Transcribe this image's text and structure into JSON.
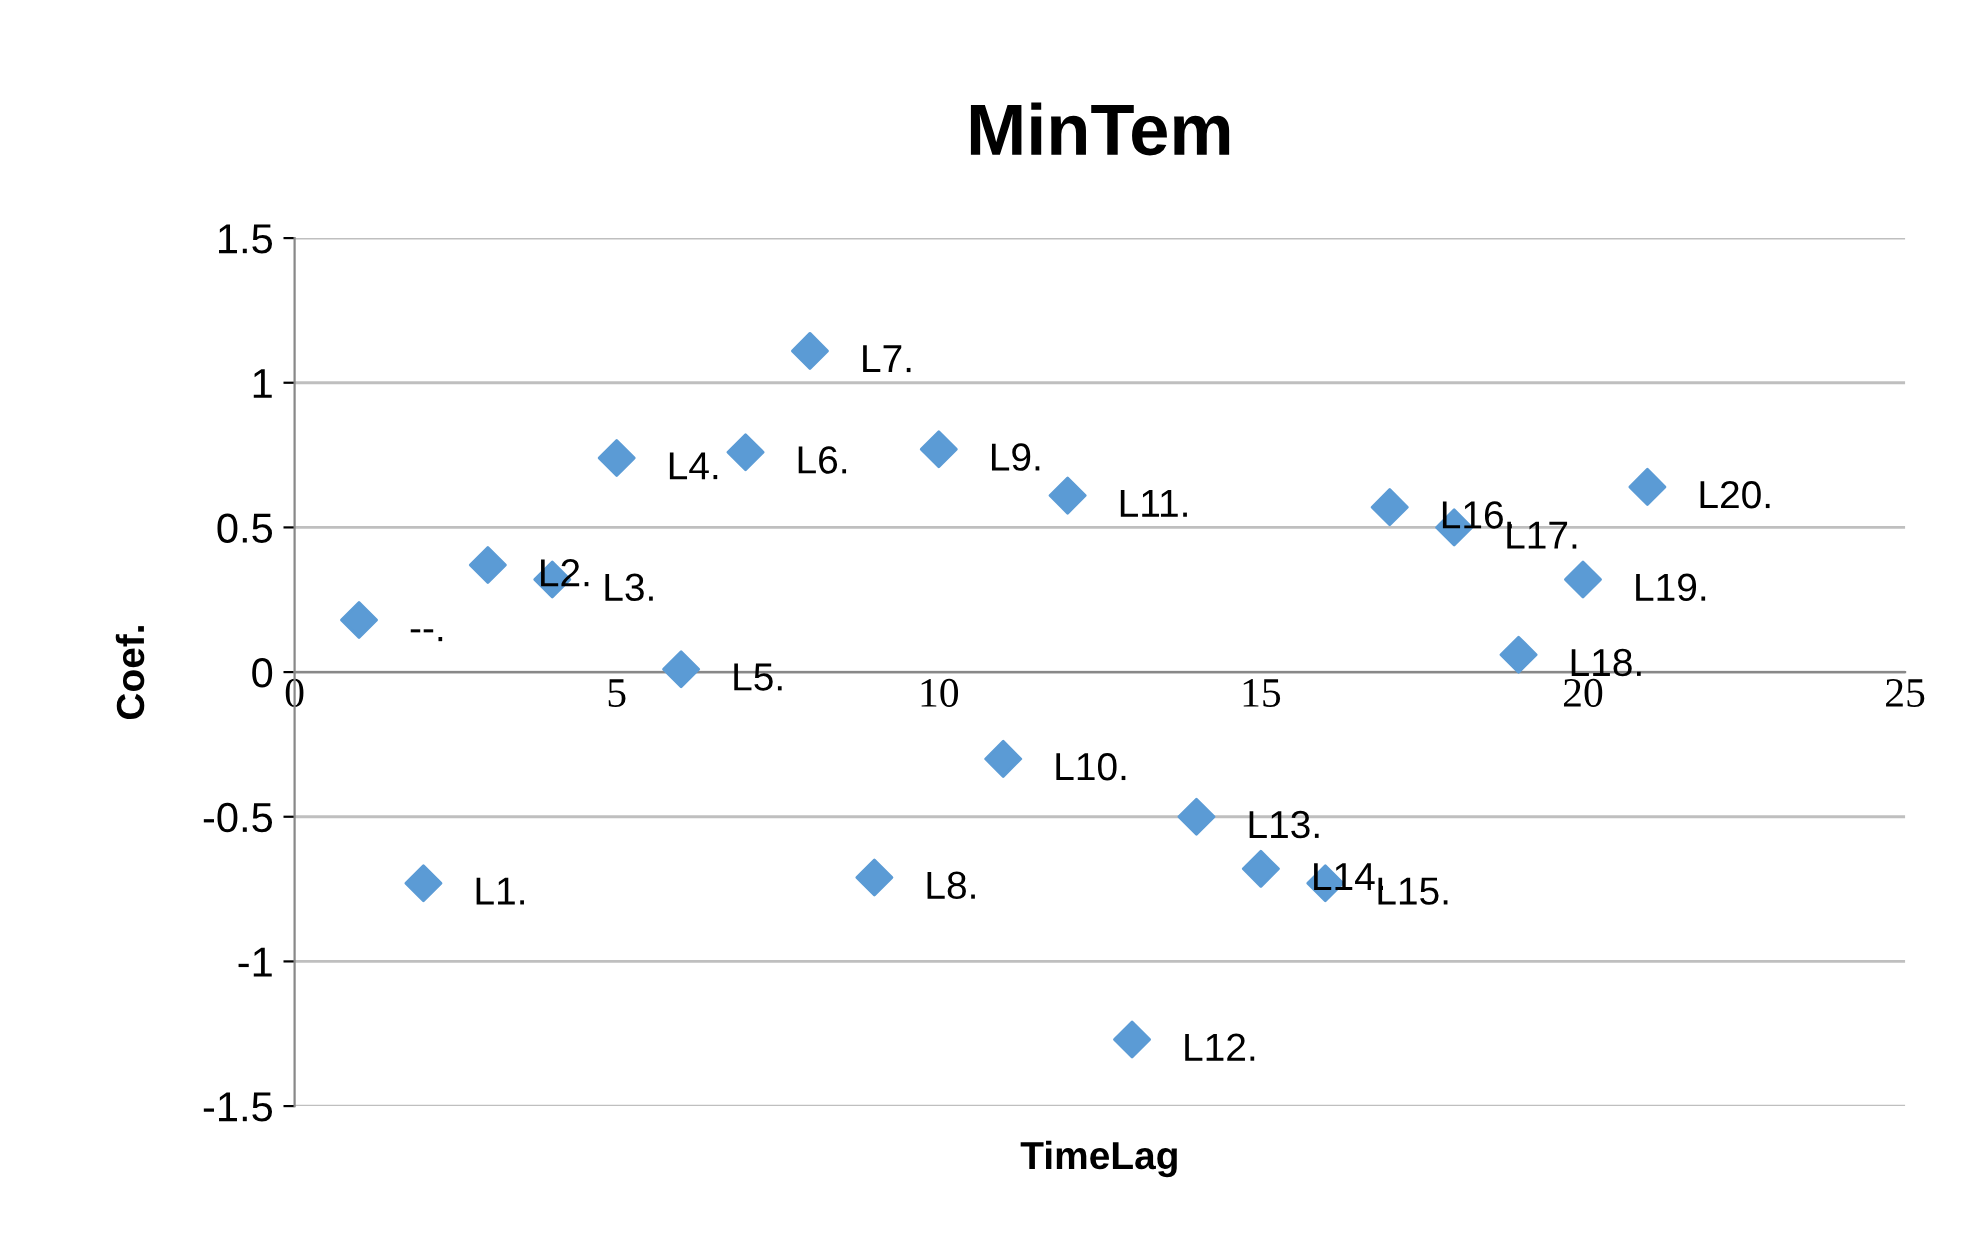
{
  "chart_data": {
    "type": "scatter",
    "title": "MinTem",
    "xlabel": "TimeLag",
    "ylabel": "Coef.",
    "x": [
      1,
      2,
      3,
      4,
      5,
      6,
      7,
      8,
      9,
      10,
      11,
      12,
      13,
      14,
      15,
      16,
      17,
      18,
      19,
      20,
      21
    ],
    "series": [
      {
        "color": "#5b9bd5",
        "values": [
          0.18,
          -0.73,
          0.37,
          0.32,
          0.74,
          0.01,
          0.76,
          1.11,
          -0.71,
          0.77,
          -0.3,
          0.61,
          -1.27,
          -0.5,
          -0.68,
          -0.73,
          0.57,
          0.5,
          0.06,
          0.32,
          0.64
        ]
      }
    ],
    "annotations": [
      {
        "text": "--.",
        "x": 1,
        "y": 0.18
      },
      {
        "text": "L1.",
        "x": 2,
        "y": -0.73
      },
      {
        "text": "L2.",
        "x": 3,
        "y": 0.37
      },
      {
        "text": "L3.",
        "x": 4,
        "y": 0.32
      },
      {
        "text": "L4.",
        "x": 5,
        "y": 0.74
      },
      {
        "text": "L5.",
        "x": 6,
        "y": 0.01
      },
      {
        "text": "L6.",
        "x": 7,
        "y": 0.76
      },
      {
        "text": "L7.",
        "x": 8,
        "y": 1.11
      },
      {
        "text": "L8.",
        "x": 9,
        "y": -0.71
      },
      {
        "text": "L9.",
        "x": 10,
        "y": 0.77
      },
      {
        "text": "L10.",
        "x": 11,
        "y": -0.3
      },
      {
        "text": "L11.",
        "x": 12,
        "y": 0.61
      },
      {
        "text": "L12.",
        "x": 13,
        "y": -1.27
      },
      {
        "text": "L13.",
        "x": 14,
        "y": -0.5
      },
      {
        "text": "L14.",
        "x": 15,
        "y": -0.68
      },
      {
        "text": "L15.",
        "x": 16,
        "y": -0.73
      },
      {
        "text": "L16.",
        "x": 17,
        "y": 0.57
      },
      {
        "text": "L17.",
        "x": 18,
        "y": 0.5
      },
      {
        "text": "L18.",
        "x": 19,
        "y": 0.06
      },
      {
        "text": "L19.",
        "x": 20,
        "y": 0.32
      },
      {
        "text": "L20.",
        "x": 21,
        "y": 0.64
      }
    ],
    "xlim": [
      0,
      25
    ],
    "xticks": [
      0,
      5,
      10,
      15,
      20,
      25
    ],
    "ylim": [
      -1.5,
      1.5
    ],
    "yticks": [
      -1.5,
      -1,
      -0.5,
      0,
      0.5,
      1,
      1.5
    ],
    "grid": "y",
    "marker": "diamond",
    "legend": false
  }
}
